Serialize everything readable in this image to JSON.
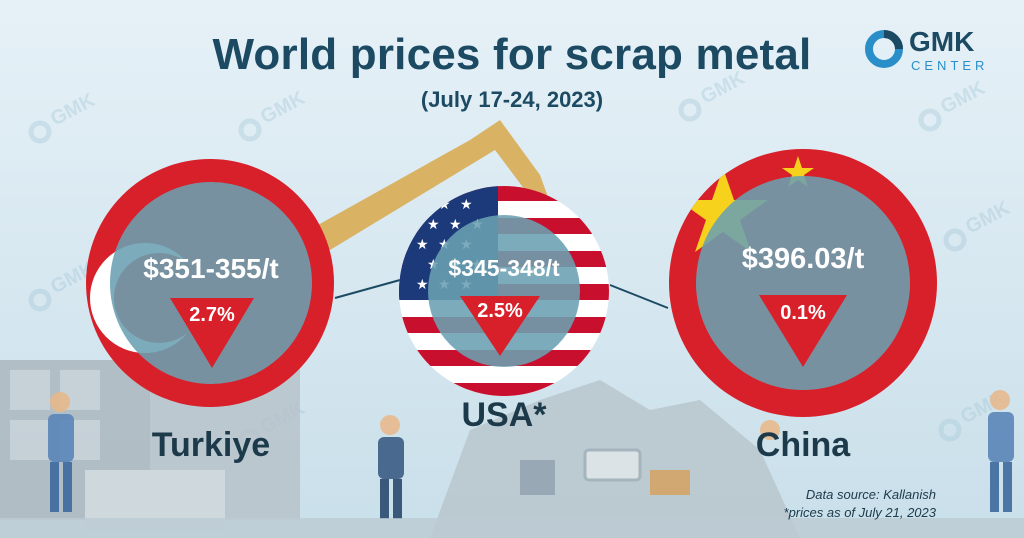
{
  "title": "World prices for scrap metal",
  "subtitle": "(July 17-24, 2023)",
  "logo": {
    "name": "GMK",
    "sub": "CENTER"
  },
  "colors": {
    "title": "#1c4a63",
    "red": "#d8202a",
    "inner": "#6aa0b2",
    "accent": "#2a8fc9"
  },
  "chart_data": {
    "type": "table",
    "title": "World prices for scrap metal",
    "subtitle": "(July 17-24, 2023)",
    "rows": [
      {
        "country": "Turkiye",
        "price": "$351-355/t",
        "change": "2.7%",
        "direction": "down"
      },
      {
        "country": "USA*",
        "price": "$345-348/t",
        "change": "2.5%",
        "direction": "down"
      },
      {
        "country": "China",
        "price": "$396.03/t",
        "change": "0.1%",
        "direction": "down"
      }
    ]
  },
  "footer": {
    "source": "Data source: Kallanish",
    "note": "*prices as of July 21, 2023"
  }
}
